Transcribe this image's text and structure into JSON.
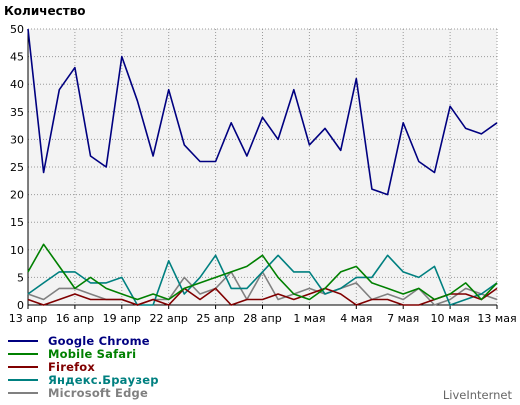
{
  "chart_data": {
    "type": "line",
    "title": "Количество",
    "ylim": [
      0,
      50
    ],
    "y_ticks": [
      "0",
      "5",
      "10",
      "15",
      "20",
      "25",
      "30",
      "35",
      "40",
      "45",
      "50"
    ],
    "x_ticks": [
      {
        "index": 0,
        "label": "13 апр"
      },
      {
        "index": 3,
        "label": "16 апр"
      },
      {
        "index": 6,
        "label": "19 апр"
      },
      {
        "index": 9,
        "label": "22 апр"
      },
      {
        "index": 12,
        "label": "25 апр"
      },
      {
        "index": 15,
        "label": "28 апр"
      },
      {
        "index": 18,
        "label": "1 мая"
      },
      {
        "index": 21,
        "label": "4 мая"
      },
      {
        "index": 24,
        "label": "7 мая"
      },
      {
        "index": 27,
        "label": "10 мая"
      },
      {
        "index": 30,
        "label": "13 мая"
      }
    ],
    "grid": true,
    "legend_placement": "bottom-left",
    "series": [
      {
        "name": "Google Chrome",
        "color": "#000080",
        "values": [
          50,
          24,
          39,
          43,
          27,
          25,
          45,
          37,
          27,
          39,
          29,
          26,
          26,
          33,
          27,
          34,
          30,
          39,
          29,
          32,
          28,
          41,
          21,
          20,
          33,
          26,
          24,
          36,
          32,
          31,
          33
        ]
      },
      {
        "name": "Mobile Safari",
        "color": "#008000",
        "values": [
          6,
          11,
          7,
          3,
          5,
          3,
          2,
          1,
          2,
          1,
          3,
          4,
          5,
          6,
          7,
          9,
          5,
          2,
          1,
          3,
          6,
          7,
          4,
          3,
          2,
          3,
          1,
          2,
          4,
          1,
          4
        ]
      },
      {
        "name": "Firefox",
        "color": "#800000",
        "values": [
          1,
          0,
          1,
          2,
          1,
          1,
          1,
          0,
          1,
          0,
          3,
          1,
          3,
          0,
          1,
          1,
          2,
          1,
          2,
          3,
          2,
          0,
          1,
          1,
          0,
          0,
          1,
          2,
          2,
          1,
          3
        ]
      },
      {
        "name": "Яндекс.Браузер",
        "color": "#008080",
        "values": [
          2,
          4,
          6,
          6,
          4,
          4,
          5,
          0,
          0,
          8,
          2,
          5,
          9,
          3,
          3,
          6,
          9,
          6,
          6,
          2,
          3,
          5,
          5,
          9,
          6,
          5,
          7,
          0,
          1,
          2,
          4
        ]
      },
      {
        "name": "Microsoft Edge",
        "color": "#808080",
        "values": [
          2,
          1,
          3,
          3,
          2,
          1,
          1,
          0,
          1,
          1,
          5,
          2,
          3,
          6,
          1,
          6,
          1,
          2,
          3,
          2,
          3,
          4,
          1,
          2,
          1,
          3,
          0,
          1,
          3,
          2,
          1
        ]
      }
    ]
  },
  "watermark": "LiveInternet"
}
